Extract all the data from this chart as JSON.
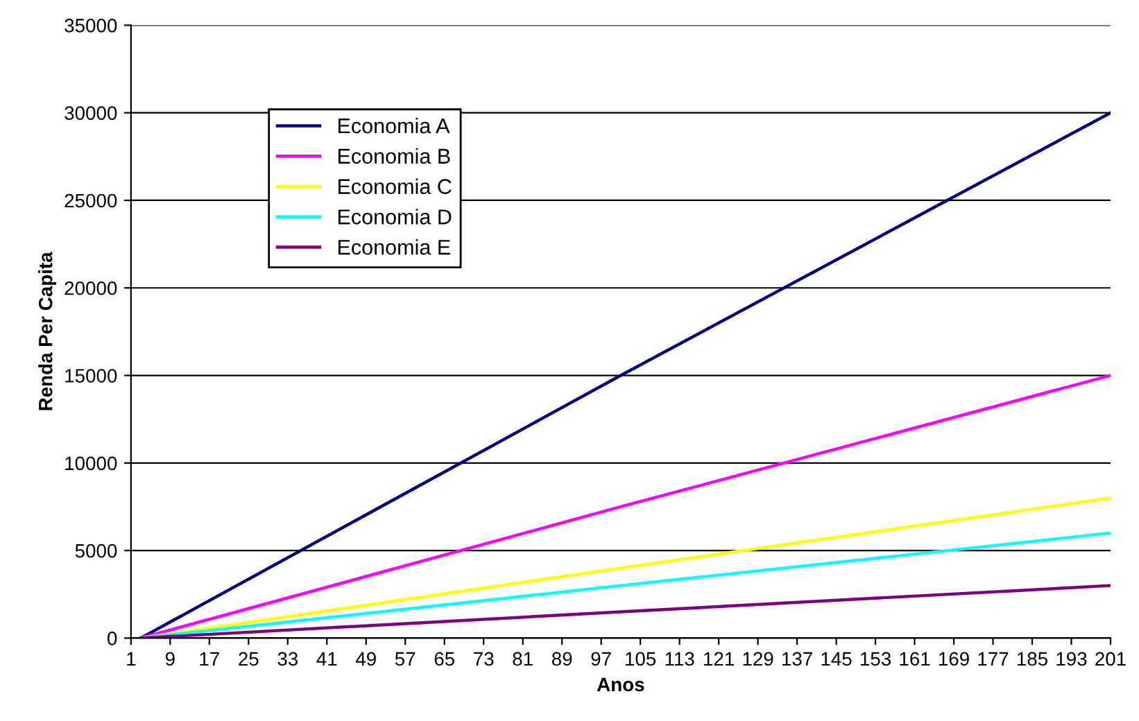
{
  "chart_data": {
    "type": "line",
    "xlabel": "Anos",
    "ylabel": "Renda Per Capita",
    "xlim": [
      1,
      201
    ],
    "xticks": [
      1,
      9,
      17,
      25,
      33,
      41,
      49,
      57,
      65,
      73,
      81,
      89,
      97,
      105,
      113,
      121,
      129,
      137,
      145,
      153,
      161,
      169,
      177,
      185,
      193,
      201
    ],
    "ylim": [
      0,
      35000
    ],
    "yticks": [
      0,
      5000,
      10000,
      15000,
      20000,
      25000,
      30000,
      35000
    ],
    "grid": "y",
    "legend": "top left",
    "marker": "none",
    "line_style": "solid",
    "series": [
      {
        "name": "Economia A",
        "color": "#000080",
        "x": [
          3,
          101,
          201
        ],
        "values": [
          0,
          15000,
          30000
        ]
      },
      {
        "name": "Economia B",
        "color": "#ff00ff",
        "x": [
          3,
          101,
          201
        ],
        "values": [
          0,
          7500,
          15000
        ]
      },
      {
        "name": "Economia C",
        "color": "#ffff00",
        "x": [
          3,
          101,
          201
        ],
        "values": [
          0,
          4000,
          8000
        ]
      },
      {
        "name": "Economia D",
        "color": "#00ffff",
        "x": [
          3,
          101,
          201
        ],
        "values": [
          0,
          3000,
          6000
        ]
      },
      {
        "name": "Economia E",
        "color": "#800080",
        "x": [
          3,
          101,
          201
        ],
        "values": [
          0,
          1500,
          3000
        ]
      }
    ]
  }
}
